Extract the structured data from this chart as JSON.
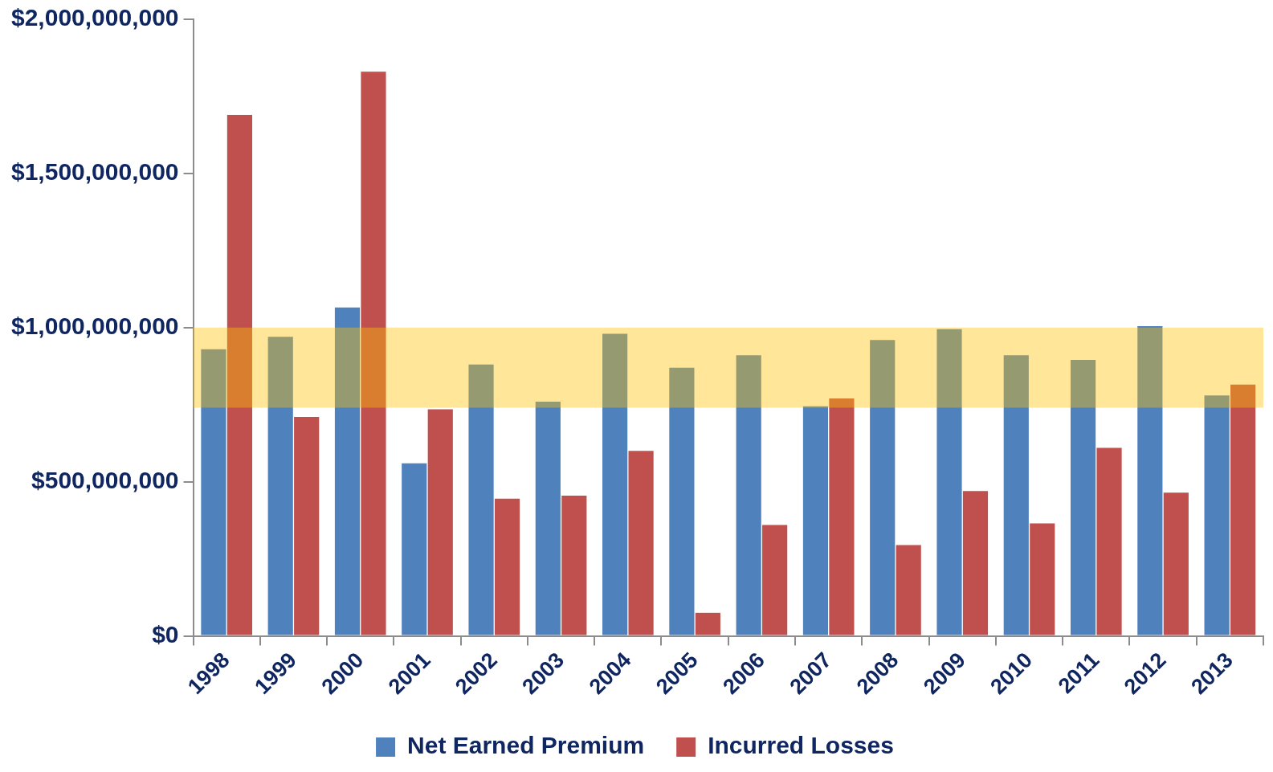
{
  "chart_data": {
    "type": "bar",
    "categories": [
      "1998",
      "1999",
      "2000",
      "2001",
      "2002",
      "2003",
      "2004",
      "2005",
      "2006",
      "2007",
      "2008",
      "2009",
      "2010",
      "2011",
      "2012",
      "2013"
    ],
    "series": [
      {
        "name": "Net Earned Premium",
        "color": "#4f81bd",
        "values": [
          930000000,
          970000000,
          1065000000,
          560000000,
          880000000,
          760000000,
          980000000,
          870000000,
          910000000,
          745000000,
          960000000,
          995000000,
          910000000,
          895000000,
          1005000000,
          780000000
        ]
      },
      {
        "name": "Incurred Losses",
        "color": "#c0504d",
        "values": [
          1690000000,
          710000000,
          1830000000,
          735000000,
          445000000,
          455000000,
          600000000,
          75000000,
          360000000,
          770000000,
          295000000,
          470000000,
          365000000,
          610000000,
          465000000,
          815000000
        ]
      }
    ],
    "ylim": [
      0,
      2000000000
    ],
    "yticks": [
      {
        "value": 0,
        "label": "$0"
      },
      {
        "value": 500000000,
        "label": "$500,000,000"
      },
      {
        "value": 1000000000,
        "label": "$1,000,000,000"
      },
      {
        "value": 1500000000,
        "label": "$1,500,000,000"
      },
      {
        "value": 2000000000,
        "label": "$2,000,000,000"
      }
    ],
    "bands": [
      {
        "axis": "y",
        "from": 740000000,
        "to": 1000000000,
        "color": "#ffc000"
      }
    ],
    "grid": false,
    "legend": "bottom"
  }
}
